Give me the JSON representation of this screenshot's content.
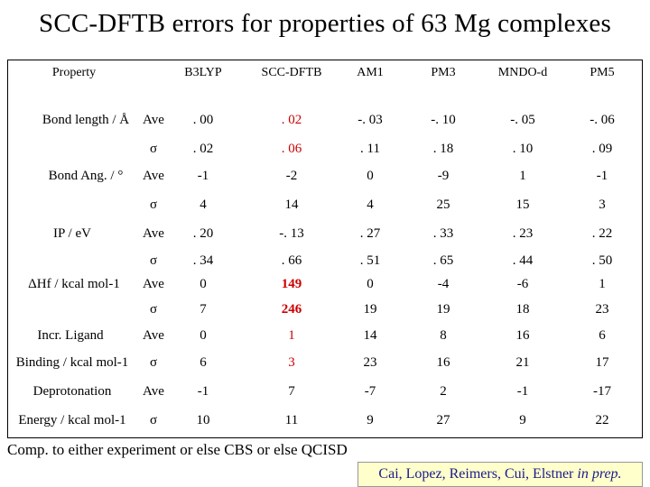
{
  "title": "SCC-DFTB errors for properties of 63 Mg complexes",
  "table": {
    "property_header": "Property",
    "columns": [
      "B3LYP",
      "SCC-DFTB",
      "AM1",
      "PM3",
      "MNDO-d",
      "PM5"
    ],
    "rows": [
      {
        "label": "Bond length / Å",
        "stat": "Ave",
        "values": [
          ". 00",
          ". 02",
          "-. 03",
          "-. 10",
          "-. 05",
          "-. 06"
        ]
      },
      {
        "label": "",
        "stat": "σ",
        "values": [
          ". 02",
          ". 06",
          ". 11",
          ". 18",
          ". 10",
          ". 09"
        ]
      },
      {
        "label": "Bond Ang. / °",
        "stat": "Ave",
        "values": [
          "-1",
          "-2",
          "0",
          "-9",
          "1",
          "-1"
        ]
      },
      {
        "label": "",
        "stat": "σ",
        "values": [
          "4",
          "14",
          "4",
          "25",
          "15",
          "3"
        ]
      },
      {
        "label": "IP / eV",
        "stat": "Ave",
        "values": [
          ". 20",
          "-. 13",
          ". 27",
          ". 33",
          ". 23",
          ". 22"
        ]
      },
      {
        "label": "",
        "stat": "σ",
        "values": [
          ". 34",
          ". 66",
          ". 51",
          ". 65",
          ". 44",
          ". 50"
        ]
      },
      {
        "label": "ΔHf / kcal mol-1",
        "stat": "Ave",
        "values": [
          "0",
          "149",
          "0",
          "-4",
          "-6",
          "1"
        ]
      },
      {
        "label": "",
        "stat": "σ",
        "values": [
          "7",
          "246",
          "19",
          "19",
          "18",
          "23"
        ]
      },
      {
        "label": "Incr. Ligand",
        "stat": "Ave",
        "values": [
          "0",
          "1",
          "14",
          "8",
          "16",
          "6"
        ]
      },
      {
        "label": "Binding / kcal mol-1",
        "stat": "σ",
        "values": [
          "6",
          "3",
          "23",
          "16",
          "21",
          "17"
        ]
      },
      {
        "label": "Deprotonation",
        "stat": "Ave",
        "values": [
          "-1",
          "7",
          "-7",
          "2",
          "-1",
          "-17"
        ]
      },
      {
        "label": "Energy / kcal mol-1",
        "stat": "σ",
        "values": [
          "10",
          "11",
          "9",
          "27",
          "9",
          "22"
        ]
      }
    ],
    "highlight_color": "#cc0000"
  },
  "note": "Comp. to either experiment or else CBS or else QCISD",
  "credit": {
    "authors": "Cai, Lopez, Reimers, Cui, Elstner",
    "status": "in prep."
  }
}
